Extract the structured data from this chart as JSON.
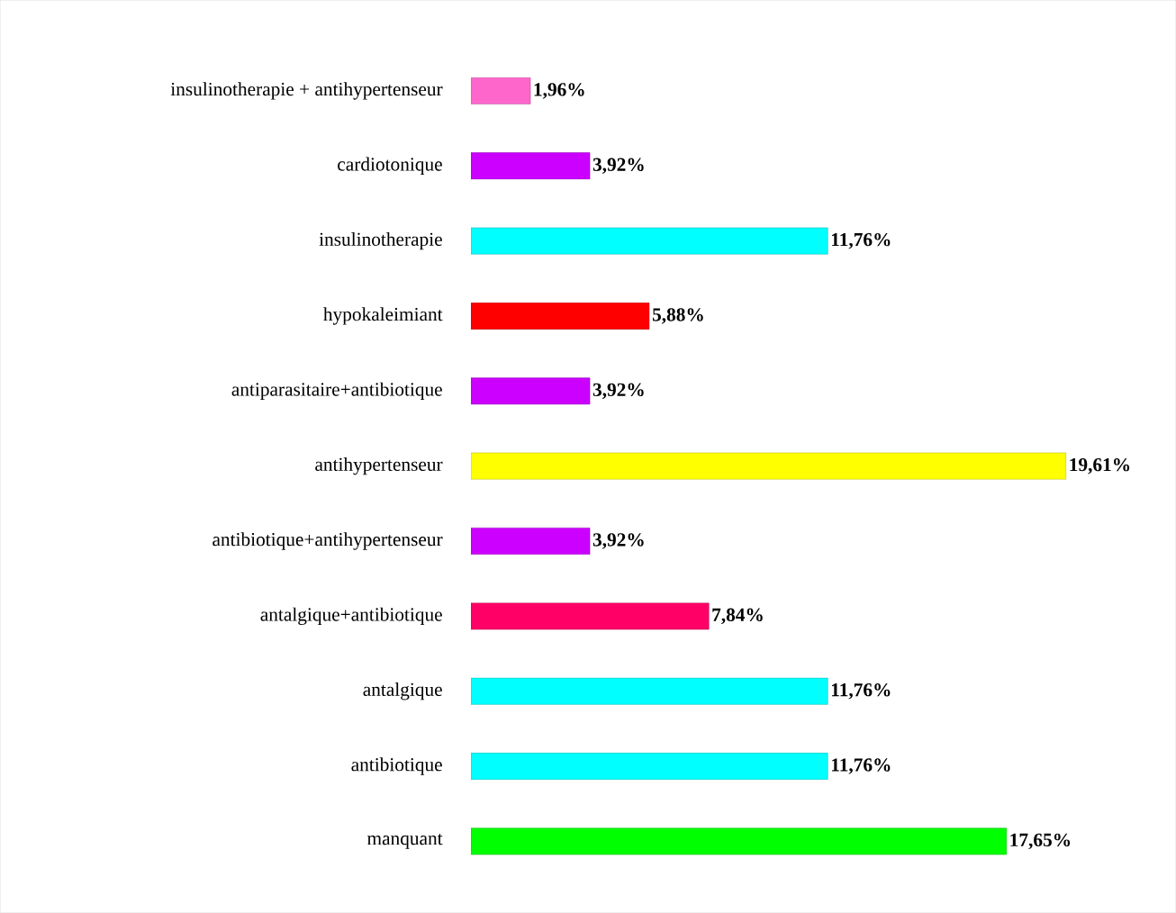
{
  "chart_data": {
    "type": "bar",
    "orientation": "horizontal",
    "categories": [
      "insulinotherapie +  antihypertenseur",
      "cardiotonique",
      "insulinotherapie",
      "hypokaleimiant",
      "antiparasitaire+antibiotique",
      "antihypertenseur",
      "antibiotique+antihypertenseur",
      "antalgique+antibiotique",
      "antalgique",
      "antibiotique",
      "manquant"
    ],
    "values": [
      1.96,
      3.92,
      11.76,
      5.88,
      3.92,
      19.61,
      3.92,
      7.84,
      11.76,
      11.76,
      17.65
    ],
    "colors": [
      "#ff66cc",
      "#cc00ff",
      "#00ffff",
      "#ff0000",
      "#cc00ff",
      "#ffff00",
      "#cc00ff",
      "#ff0066",
      "#00ffff",
      "#00ffff",
      "#00ff00"
    ],
    "value_labels": [
      "1,96%",
      "3,92%",
      "11,76%",
      "5,88%",
      "3,92%",
      "19,61%",
      "3,92%",
      "7,84%",
      "11,76%",
      "11,76%",
      "17,65%"
    ]
  }
}
